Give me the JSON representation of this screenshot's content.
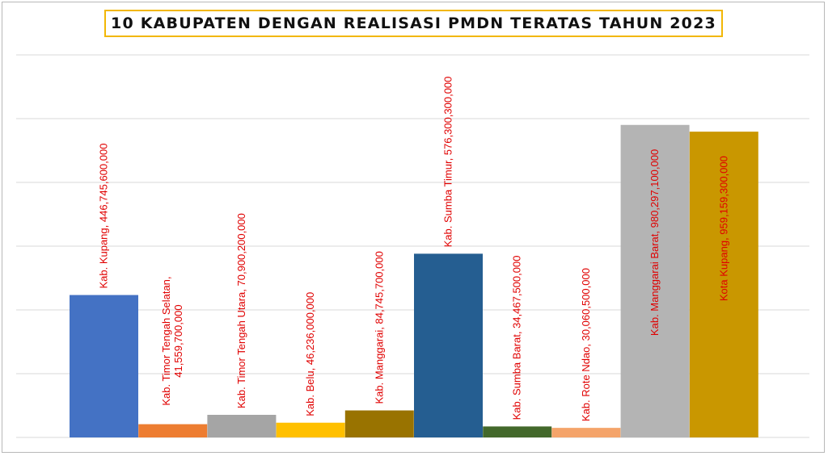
{
  "chart_data": {
    "type": "bar",
    "title": "10 KABUPATEN DENGAN REALISASI PMDN TERATAS TAHUN 2023",
    "categories": [
      "Kab. Kupang",
      "Kab. Timor Tengah Selatan,",
      "Kab. Timor Tengah Utara",
      "Kab. Belu",
      "Kab. Manggarai",
      "Kab. Sumba Timur",
      "Kab. Sumba Barat",
      "Kab. Rote Ndao",
      "Kab. Manggarai Barat",
      "Kota Kupang"
    ],
    "values": [
      446745600000,
      41559700000,
      70900200000,
      46236000000,
      84745700000,
      576300300000,
      34467500000,
      30060500000,
      980297100000,
      959159300000
    ],
    "value_labels": [
      "446,745,600,000",
      "41,559,700,000",
      "70,900,200,000",
      "46,236,000,000",
      "84,745,700,000",
      "576,300,300,000",
      "34,467,500,000",
      "30,060,500,000",
      "980,297,100,000",
      "959,159,300,000"
    ],
    "colors": [
      "#4472c4",
      "#ed7d31",
      "#a5a5a5",
      "#ffc000",
      "#997300",
      "#255e91",
      "#43682b",
      "#f4a46a",
      "#b4b4b4",
      "#c99700"
    ],
    "label_color": "#e00000",
    "ylim": [
      0,
      1200000000000
    ],
    "grid": true,
    "legend": "none",
    "xlabel": "",
    "ylabel": ""
  }
}
